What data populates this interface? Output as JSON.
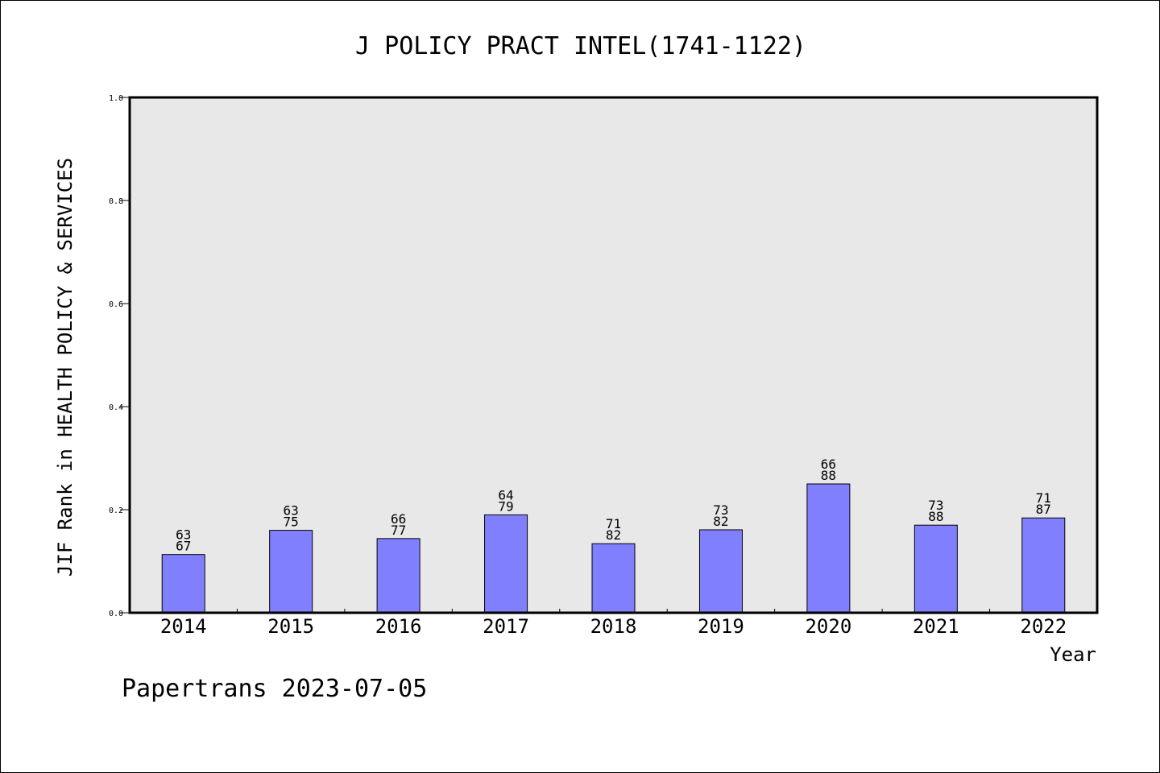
{
  "chart_data": {
    "type": "bar",
    "title": "J POLICY PRACT INTEL(1741-1122)",
    "xlabel": "Year",
    "ylabel": "JIF Rank in HEALTH POLICY & SERVICES",
    "ylim": [
      0,
      1.0
    ],
    "y_ticks": [
      "0.0",
      "0.2",
      "0.4",
      "0.6",
      "0.8",
      "1.0"
    ],
    "categories": [
      "2014",
      "2015",
      "2016",
      "2017",
      "2018",
      "2019",
      "2020",
      "2021",
      "2022"
    ],
    "values": [
      0.113,
      0.16,
      0.144,
      0.19,
      0.134,
      0.161,
      0.25,
      0.17,
      0.184
    ],
    "label_top": [
      "63",
      "63",
      "66",
      "64",
      "71",
      "73",
      "66",
      "73",
      "71"
    ],
    "label_bottom": [
      "67",
      "75",
      "77",
      "79",
      "82",
      "82",
      "88",
      "88",
      "87"
    ],
    "grid": false,
    "colors": {
      "bar": "#8080ff",
      "plot_bg": "#e8e8e8"
    }
  },
  "footer": {
    "watermark": "Papertrans 2023-07-05"
  }
}
